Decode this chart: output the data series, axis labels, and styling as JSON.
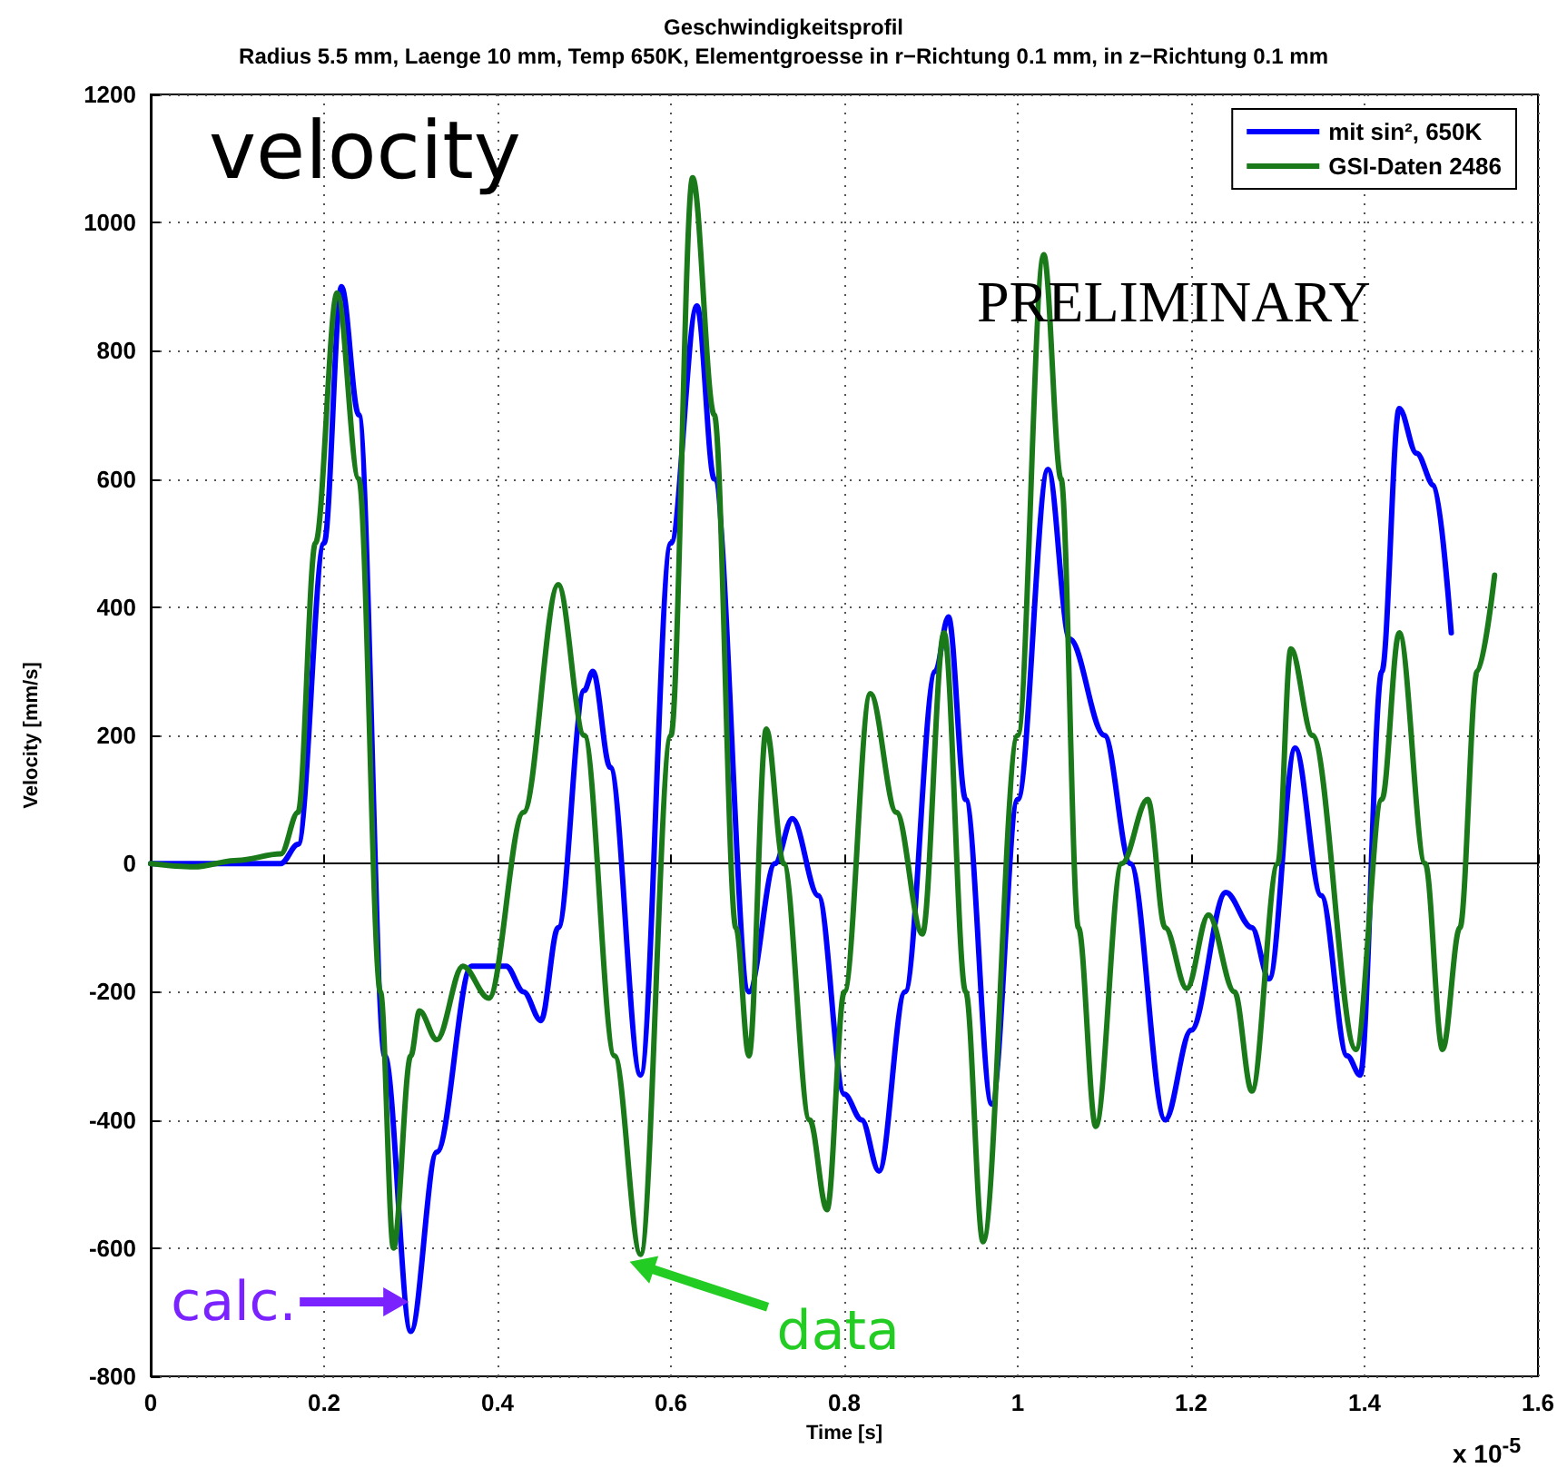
{
  "chart_data": {
    "type": "line",
    "title": "Geschwindigkeitsprofil",
    "subtitle": "Radius 5.5 mm, Laenge 10 mm, Temp 650K, Elementgroesse in r−Richtung 0.1 mm, in z−Richtung 0.1 mm",
    "xlabel": "Time [s]",
    "ylabel": "Velocity [mm/s]",
    "annotations": [
      "velocity",
      "PRELIMINARY",
      "x 10$^{-5}$",
      {
        "text": "calc.",
        "x": 0.285,
        "y": -650
      },
      {
        "text": "data",
        "x": 0.565,
        "y": -610
      }
    ],
    "xlim": [
      0,
      1.6
    ],
    "xticks": [
      0,
      0.2,
      0.4,
      0.6,
      0.8,
      1,
      1.2,
      1.4,
      1.6
    ],
    "ylim": [
      -800,
      1200
    ],
    "yticks": [
      -800,
      -600,
      -400,
      -200,
      0,
      200,
      400,
      600,
      800,
      1000,
      1200
    ],
    "grid": true,
    "legend": "top right",
    "marker": "none",
    "line_style": "solid",
    "series": [
      {
        "name": "mit sin², 650K",
        "color": "#0000ff",
        "x": [
          0,
          0.15,
          0.17,
          0.2,
          0.22,
          0.24,
          0.27,
          0.3,
          0.33,
          0.37,
          0.41,
          0.43,
          0.45,
          0.47,
          0.5,
          0.51,
          0.53,
          0.565,
          0.6,
          0.63,
          0.65,
          0.69,
          0.72,
          0.74,
          0.77,
          0.8,
          0.82,
          0.84,
          0.87,
          0.905,
          0.92,
          0.94,
          0.97,
          1,
          1.035,
          1.06,
          1.1,
          1.13,
          1.17,
          1.2,
          1.24,
          1.27,
          1.29,
          1.32,
          1.35,
          1.38,
          1.395,
          1.42,
          1.44,
          1.46,
          1.48,
          1.5
        ],
        "values": [
          0,
          0,
          30,
          500,
          900,
          700,
          -300,
          -730,
          -450,
          -160,
          -160,
          -200,
          -245,
          -100,
          270,
          300,
          150,
          -330,
          500,
          870,
          600,
          -200,
          0,
          70,
          -50,
          -360,
          -400,
          -480,
          -200,
          300,
          385,
          100,
          -375,
          100,
          615,
          350,
          200,
          0,
          -400,
          -260,
          -45,
          -100,
          -180,
          180,
          -50,
          -300,
          -330,
          300,
          710,
          640,
          590,
          360
        ]
      },
      {
        "name": "GSI-Daten 2486",
        "color": "#1a7a1a",
        "x": [
          0,
          0.05,
          0.1,
          0.15,
          0.17,
          0.19,
          0.215,
          0.24,
          0.265,
          0.28,
          0.3,
          0.31,
          0.33,
          0.36,
          0.39,
          0.43,
          0.47,
          0.5,
          0.535,
          0.565,
          0.6,
          0.625,
          0.65,
          0.675,
          0.69,
          0.71,
          0.73,
          0.76,
          0.78,
          0.8,
          0.83,
          0.86,
          0.89,
          0.915,
          0.94,
          0.96,
          1,
          1.03,
          1.05,
          1.07,
          1.09,
          1.12,
          1.15,
          1.17,
          1.195,
          1.22,
          1.25,
          1.27,
          1.3,
          1.315,
          1.34,
          1.39,
          1.42,
          1.44,
          1.47,
          1.49,
          1.51,
          1.53,
          1.55
        ],
        "values": [
          0,
          -5,
          5,
          15,
          80,
          500,
          890,
          600,
          -200,
          -600,
          -300,
          -230,
          -275,
          -160,
          -210,
          80,
          435,
          200,
          -300,
          -610,
          200,
          1070,
          700,
          -100,
          -300,
          210,
          0,
          -400,
          -540,
          -200,
          265,
          80,
          -110,
          360,
          -200,
          -590,
          200,
          950,
          600,
          -100,
          -410,
          0,
          100,
          -100,
          -195,
          -80,
          -200,
          -355,
          0,
          335,
          200,
          -290,
          100,
          360,
          0,
          -290,
          -100,
          300,
          450
        ]
      }
    ]
  }
}
